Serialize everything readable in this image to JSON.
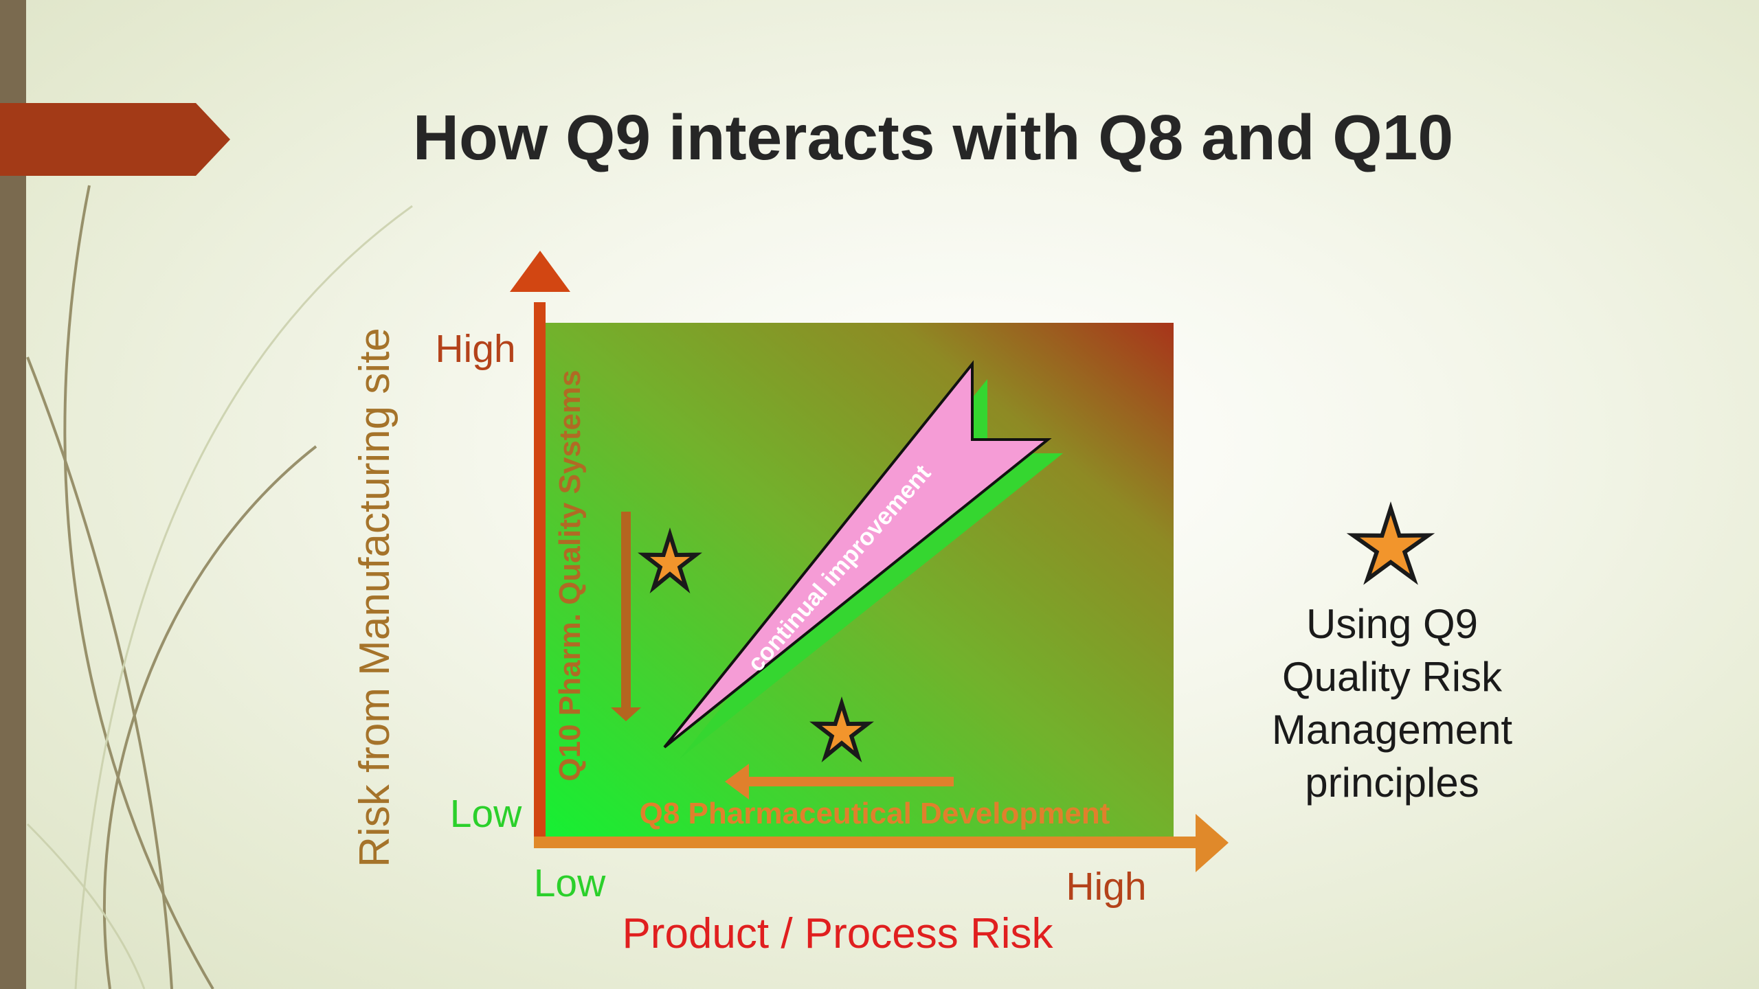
{
  "title": "How Q9 interacts with Q8 and Q10",
  "y_axis": {
    "title": "Risk from Manufacturing site",
    "high_label": "High",
    "low_label": "Low"
  },
  "x_axis": {
    "title": "Product / Process Risk",
    "high_label": "High",
    "low_label": "Low"
  },
  "labels": {
    "q10": "Q10 Pharm. Quality Systems",
    "q8": "Q8 Pharmaceutical Development",
    "continual_improvement": "continual improvement"
  },
  "legend": {
    "icon": "star-icon",
    "lines": [
      "Using Q9",
      "Quality Risk",
      "Management",
      "principles"
    ]
  },
  "colors": {
    "title_text": "#262626",
    "accent_banner": "#a33a17",
    "sidebar_bar": "#7a6a4f",
    "y_axis_arrow": "#d24612",
    "x_axis_arrow": "#e0892a",
    "y_axis_title": "#a5732a",
    "high_label": "#b4421a",
    "low_label": "#2bd02b",
    "x_axis_title": "#e01f1f",
    "q10_label": "#b06a24",
    "q8_label": "#e0802c",
    "star_fill": "#f2952c",
    "arrow_fill": "#f59cd6",
    "arrow_shadow": "#35d630"
  }
}
